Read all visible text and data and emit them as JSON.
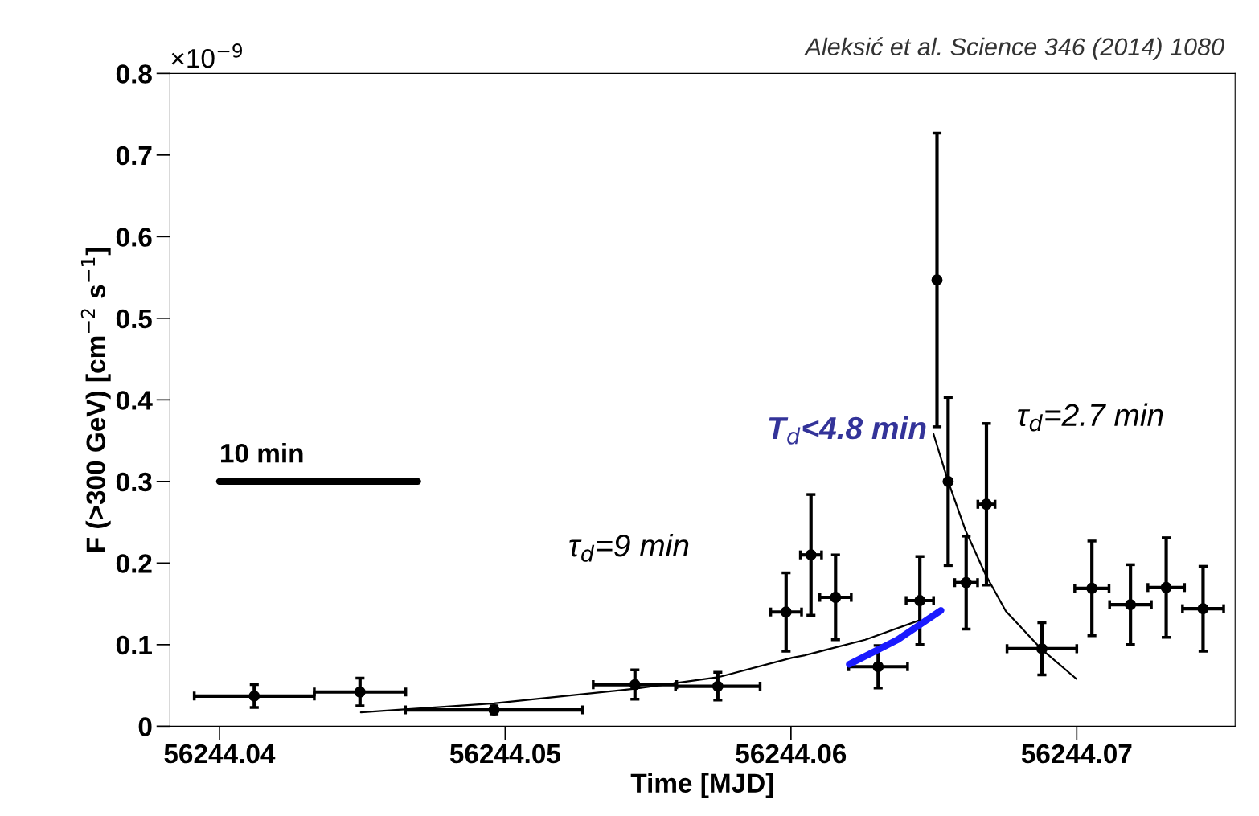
{
  "chart_data": {
    "type": "scatter",
    "xlabel": "Time [MJD]",
    "ylabel": "F (>300 GeV) [cm$^{−2}$ s$^{−1}$]",
    "xlim": [
      56244.03827,
      56244.07554
    ],
    "ylim": [
      0,
      0.8
    ],
    "xticks": [
      56244.04,
      56244.05,
      56244.06,
      56244.07
    ],
    "yticks": [
      0,
      0.1,
      0.2,
      0.3,
      0.4,
      0.5,
      0.6,
      0.7,
      0.8
    ],
    "marker": "circle",
    "grid": false,
    "series": [
      {
        "color": "#000000",
        "x": [
          56244.04122,
          56244.04492,
          56244.04961,
          56244.05454,
          56244.05744,
          56244.05983,
          56244.0607,
          56244.06156,
          56244.06305,
          56244.06451,
          56244.06511,
          56244.0655,
          56244.06613,
          56244.06684,
          56244.06878,
          56244.07053,
          56244.07188,
          56244.07313,
          56244.07442
        ],
        "values": [
          0.037,
          0.042,
          0.02,
          0.051,
          0.049,
          0.14,
          0.21,
          0.158,
          0.073,
          0.154,
          0.547,
          0.3,
          0.176,
          0.272,
          0.095,
          0.169,
          0.149,
          0.17,
          0.144
        ],
        "errors": [
          0.014,
          0.017,
          0.005,
          0.018,
          0.017,
          0.048,
          0.074,
          0.052,
          0.026,
          0.054,
          0.18,
          0.103,
          0.057,
          0.099,
          0.032,
          0.058,
          0.049,
          0.061,
          0.052
        ],
        "xerrors": [
          0.0021,
          0.0016,
          0.0031,
          0.00146,
          0.00148,
          0.00054,
          0.00037,
          0.00055,
          0.00103,
          0.00048,
          null,
          null,
          0.0004,
          0.0003,
          0.00122,
          0.0006,
          0.00073,
          0.00064,
          0.00072
        ]
      },
      {
        "type": "line",
        "color": "#000000",
        "marker": "none",
        "x": [
          56244.04495,
          56244.04961,
          56244.05454,
          56244.05744,
          56244.06004,
          56244.06049,
          56244.0626,
          56244.06451
        ],
        "values": [
          0.017,
          0.028,
          0.046,
          0.06,
          0.084,
          0.087,
          0.106,
          0.13
        ]
      },
      {
        "type": "line",
        "color": "#000000",
        "marker": "none",
        "x": [
          56244.06499,
          56244.0655,
          56244.06612,
          56244.06682,
          56244.06752,
          56244.06878,
          56244.06999
        ],
        "values": [
          0.358,
          0.3,
          0.239,
          0.185,
          0.141,
          0.094,
          0.058
        ]
      },
      {
        "type": "line",
        "color": "#1a1aff",
        "marker": "none",
        "x": [
          56244.06204,
          56244.06373,
          56244.06525
        ],
        "values": [
          0.076,
          0.106,
          0.142
        ]
      },
      {
        "type": "line",
        "color": "#000000",
        "marker": "none",
        "x": [
          56244.04,
          56244.04694
        ],
        "values": [
          0.3,
          0.3
        ]
      }
    ],
    "annotations": [
      "×10$^{−9}$",
      "Aleksić et al. Science 346 (2014) 1080",
      {
        "text": "10 min",
        "x": 56244.04,
        "y": 0.3
      },
      "τ$_{d}$=9 min",
      "T$_{d}$<4.8 min",
      "τ$_{d}$=2.7 min"
    ]
  }
}
